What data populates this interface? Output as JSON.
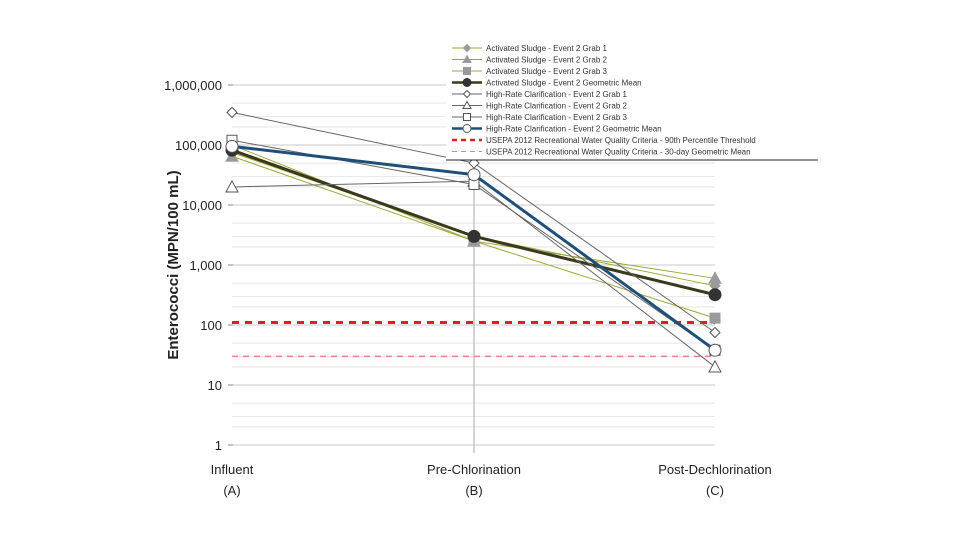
{
  "chart_data": {
    "type": "line",
    "y_scale": "log",
    "ylabel": "Enterococci (MPN/100 mL)",
    "xlabel": "",
    "ylim": [
      1,
      1000000
    ],
    "y_ticks": [
      "1",
      "10",
      "100",
      "1,000",
      "10,000",
      "100,000",
      "1,000,000"
    ],
    "categories": [
      {
        "name": "Influent",
        "code": "(A)"
      },
      {
        "name": "Pre-Chlorination",
        "code": "(B)"
      },
      {
        "name": "Post-Dechlorination",
        "code": "(C)"
      }
    ],
    "series": [
      {
        "name": "Activated Sludge - Event 2 Grab 1",
        "color": "#9aa83a",
        "marker": "diamond-filled",
        "width": 1,
        "values": [
          75000,
          3000,
          450
        ]
      },
      {
        "name": "Activated Sludge - Event 2 Grab 2",
        "color": "#9aa83a",
        "marker": "triangle-filled",
        "width": 1,
        "values": [
          65000,
          2500,
          600
        ]
      },
      {
        "name": "Activated Sludge - Event 2 Grab 3",
        "color": "#9aa83a",
        "marker": "square-filled",
        "width": 1,
        "values": [
          100000,
          2500,
          130
        ]
      },
      {
        "name": "Activated Sludge - Event 2 Geometric Mean",
        "color": "#3a3a1a",
        "marker": "circle-filled",
        "width": 3,
        "values": [
          82000,
          3000,
          320
        ]
      },
      {
        "name": "High-Rate Clarification - Event 2 Grab 1",
        "color": "#666666",
        "marker": "diamond-open",
        "width": 1,
        "values": [
          350000,
          50000,
          75
        ]
      },
      {
        "name": "High-Rate Clarification - Event 2 Grab 2",
        "color": "#666666",
        "marker": "triangle-open",
        "width": 1,
        "values": [
          20000,
          25000,
          20
        ]
      },
      {
        "name": "High-Rate Clarification - Event 2 Grab 3",
        "color": "#666666",
        "marker": "square-open",
        "width": 1,
        "values": [
          120000,
          22000,
          38
        ]
      },
      {
        "name": "High-Rate Clarification - Event 2 Geometric Mean",
        "color": "#1f4e79",
        "marker": "circle-open",
        "width": 3,
        "values": [
          95000,
          32000,
          38
        ]
      }
    ],
    "thresholds": [
      {
        "name": "USEPA 2012 Recreational Water Quality Criteria - 90th Percentile Threshold",
        "value": 110,
        "color": "#e02020",
        "style": "dashed-thick"
      },
      {
        "name": "USEPA 2012 Recreational Water Quality Criteria - 30-day Geometric Mean",
        "value": 30,
        "color": "#f08080",
        "style": "dashed-thin"
      }
    ],
    "legend_position": "top-right"
  }
}
